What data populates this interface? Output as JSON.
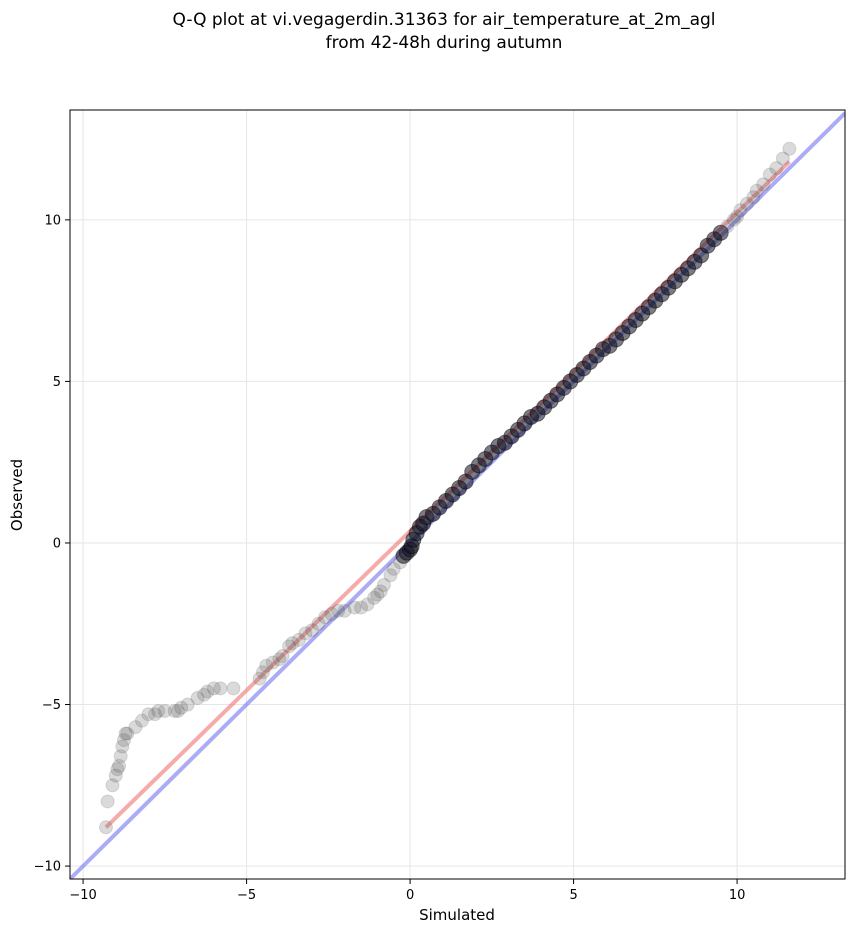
{
  "chart_data": {
    "type": "scatter",
    "title": [
      "Q-Q plot at vi.vegagerdin.31363 for air_temperature_at_2m_agl",
      "from 42-48h during autumn"
    ],
    "xlabel": "Simulated",
    "ylabel": "Observed",
    "xlim": [
      -10.4,
      13.3
    ],
    "ylim": [
      -10.4,
      13.4
    ],
    "xticks": [
      -10,
      -5,
      0,
      5,
      10
    ],
    "yticks": [
      -10,
      -5,
      0,
      5,
      10
    ],
    "xtick_labels": [
      "−10",
      "−5",
      "0",
      "5",
      "10"
    ],
    "ytick_labels": [
      "−10",
      "−5",
      "0",
      "5",
      "10"
    ],
    "grid": true,
    "colors": {
      "points": "#555555",
      "identity_line": "#6666ee",
      "fit_line": "#ee6666",
      "dense_core": "#101020"
    },
    "identity_line": {
      "x": [
        -10.4,
        13.3
      ],
      "y": [
        -10.4,
        13.3
      ]
    },
    "fit_line": {
      "x": [
        -9.3,
        11.6
      ],
      "y": [
        -8.8,
        11.8
      ]
    },
    "points": {
      "x": [
        -9.3,
        -9.25,
        -9.1,
        -9.0,
        -8.95,
        -8.9,
        -8.85,
        -8.8,
        -8.75,
        -8.7,
        -8.65,
        -8.4,
        -8.2,
        -8.0,
        -7.8,
        -7.7,
        -7.5,
        -7.2,
        -7.1,
        -7.0,
        -6.8,
        -6.5,
        -6.3,
        -6.2,
        -6.0,
        -5.8,
        -5.4,
        -4.6,
        -4.5,
        -4.4,
        -4.2,
        -4.0,
        -3.9,
        -3.7,
        -3.6,
        -3.4,
        -3.2,
        -3.0,
        -2.8,
        -2.6,
        -2.4,
        -2.2,
        -2.0,
        -1.7,
        -1.5,
        -1.3,
        -1.1,
        -1.0,
        -0.9,
        -0.8,
        -0.6,
        -0.5,
        -0.3,
        -0.2,
        -0.1,
        0.0,
        0.05,
        0.1,
        0.2,
        0.3,
        0.4,
        0.5,
        0.7,
        0.9,
        1.1,
        1.3,
        1.5,
        1.7,
        1.9,
        2.1,
        2.3,
        2.5,
        2.7,
        2.9,
        3.1,
        3.3,
        3.5,
        3.7,
        3.9,
        4.1,
        4.3,
        4.5,
        4.7,
        4.9,
        5.1,
        5.3,
        5.5,
        5.7,
        5.9,
        6.1,
        6.3,
        6.5,
        6.7,
        6.9,
        7.1,
        7.3,
        7.5,
        7.7,
        7.9,
        8.1,
        8.3,
        8.5,
        8.7,
        8.9,
        9.1,
        9.3,
        9.5,
        9.7,
        9.9,
        10.0,
        10.1,
        10.3,
        10.5,
        10.6,
        10.8,
        11.0,
        11.2,
        11.4,
        11.6
      ],
      "y": [
        -8.8,
        -8.0,
        -7.5,
        -7.2,
        -7.0,
        -6.9,
        -6.6,
        -6.3,
        -6.1,
        -5.9,
        -5.9,
        -5.7,
        -5.5,
        -5.3,
        -5.3,
        -5.2,
        -5.2,
        -5.2,
        -5.2,
        -5.1,
        -5.0,
        -4.8,
        -4.7,
        -4.6,
        -4.5,
        -4.5,
        -4.5,
        -4.2,
        -4.0,
        -3.8,
        -3.7,
        -3.6,
        -3.5,
        -3.2,
        -3.1,
        -3.0,
        -2.8,
        -2.7,
        -2.5,
        -2.3,
        -2.2,
        -2.1,
        -2.1,
        -2.0,
        -2.0,
        -1.9,
        -1.7,
        -1.6,
        -1.5,
        -1.3,
        -1.0,
        -0.8,
        -0.6,
        -0.4,
        -0.3,
        -0.2,
        -0.1,
        0.1,
        0.3,
        0.5,
        0.6,
        0.8,
        0.9,
        1.1,
        1.3,
        1.5,
        1.7,
        1.9,
        2.2,
        2.4,
        2.6,
        2.8,
        3.0,
        3.1,
        3.3,
        3.5,
        3.7,
        3.9,
        4.0,
        4.2,
        4.4,
        4.6,
        4.8,
        5.0,
        5.2,
        5.4,
        5.6,
        5.8,
        6.0,
        6.1,
        6.3,
        6.5,
        6.7,
        6.9,
        7.1,
        7.3,
        7.5,
        7.7,
        7.9,
        8.1,
        8.3,
        8.5,
        8.7,
        8.9,
        9.2,
        9.4,
        9.6,
        9.8,
        10.0,
        10.1,
        10.3,
        10.5,
        10.7,
        10.9,
        11.1,
        11.4,
        11.6,
        11.9,
        12.2
      ]
    }
  }
}
